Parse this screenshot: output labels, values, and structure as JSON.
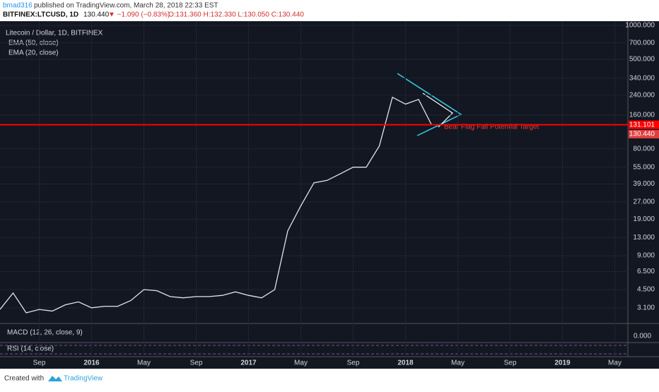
{
  "header": {
    "author": "bmad316",
    "published": "published on TradingView.com, March 28, 2018 22:33 EST",
    "symbol": "BITFINEX:LTCUSD, 1D",
    "last": "130.440",
    "change": "▼ −1.090 (−0.83%)",
    "ohlc": "O:131.360 H:132.330 L:130.050 C:130.440"
  },
  "footer": {
    "created": "Created with",
    "brand": "TradingView"
  },
  "chart_data": {
    "type": "line",
    "title": "Litecoin / Dollar, 1D, BITFINEX",
    "indicators": [
      "EMA (50, close)",
      "EMA (20, close)"
    ],
    "log_scale": true,
    "x": [
      "2015-06",
      "2015-07",
      "2015-08",
      "2015-09",
      "2015-10",
      "2015-11",
      "2015-12",
      "2016-01",
      "2016-02",
      "2016-03",
      "2016-04",
      "2016-05",
      "2016-06",
      "2016-07",
      "2016-08",
      "2016-09",
      "2016-10",
      "2016-11",
      "2016-12",
      "2017-01",
      "2017-02",
      "2017-03",
      "2017-04",
      "2017-05",
      "2017-06",
      "2017-07",
      "2017-08",
      "2017-09",
      "2017-10",
      "2017-11",
      "2017-12",
      "2018-01",
      "2018-02",
      "2018-03"
    ],
    "series": [
      {
        "name": "LTCUSD",
        "color": "#e0e3eb",
        "values": [
          3,
          4.2,
          2.8,
          3.0,
          2.9,
          3.3,
          3.5,
          3.1,
          3.2,
          3.2,
          3.6,
          4.5,
          4.4,
          3.9,
          3.8,
          3.9,
          3.9,
          4.0,
          4.3,
          4.0,
          3.8,
          4.5,
          15,
          25,
          40,
          42,
          48,
          55,
          55,
          85,
          230,
          200,
          220,
          130.44
        ]
      }
    ],
    "xlim": [
      "2015-06",
      "2019-06"
    ],
    "xticks": [
      {
        "value": "2015-09",
        "label": "Sep"
      },
      {
        "value": "2016-01",
        "label": "2016"
      },
      {
        "value": "2016-05",
        "label": "May"
      },
      {
        "value": "2016-09",
        "label": "Sep"
      },
      {
        "value": "2017-01",
        "label": "2017"
      },
      {
        "value": "2017-05",
        "label": "May"
      },
      {
        "value": "2017-09",
        "label": "Sep"
      },
      {
        "value": "2018-01",
        "label": "2018"
      },
      {
        "value": "2018-05",
        "label": "May"
      },
      {
        "value": "2018-09",
        "label": "Sep"
      },
      {
        "value": "2019-01",
        "label": "2019"
      },
      {
        "value": "2019-05",
        "label": "May"
      }
    ],
    "ylim": [
      2.25,
      1090
    ],
    "yticks": [
      {
        "value": 1000,
        "label": "1000.000"
      },
      {
        "value": 700,
        "label": "700.000"
      },
      {
        "value": 500,
        "label": "500.000"
      },
      {
        "value": 340,
        "label": "340.000"
      },
      {
        "value": 240,
        "label": "240.000"
      },
      {
        "value": 160,
        "label": "160.000"
      },
      {
        "value": 80,
        "label": "80.000"
      },
      {
        "value": 55,
        "label": "55.000"
      },
      {
        "value": 39,
        "label": "39.000"
      },
      {
        "value": 27,
        "label": "27.000"
      },
      {
        "value": 19,
        "label": "19.000"
      },
      {
        "value": 13,
        "label": "13.000"
      },
      {
        "value": 9,
        "label": "9.000"
      },
      {
        "value": 6.5,
        "label": "6.500"
      },
      {
        "value": 4.5,
        "label": "4.500"
      },
      {
        "value": 3.1,
        "label": "3.100"
      }
    ],
    "grid": true,
    "price_lines": [
      {
        "value": 131.101,
        "color": "#ff0000"
      }
    ],
    "price_markers": [
      {
        "value": 130.44,
        "label": "130.440",
        "color": "#e03e3e"
      }
    ],
    "annotation": "Bear Flag Fall Potential Target",
    "panes": [
      {
        "label": "MACD (12, 26, close, 9)",
        "axis_label": "0.000"
      },
      {
        "label": "RSI (14, close)"
      }
    ]
  }
}
